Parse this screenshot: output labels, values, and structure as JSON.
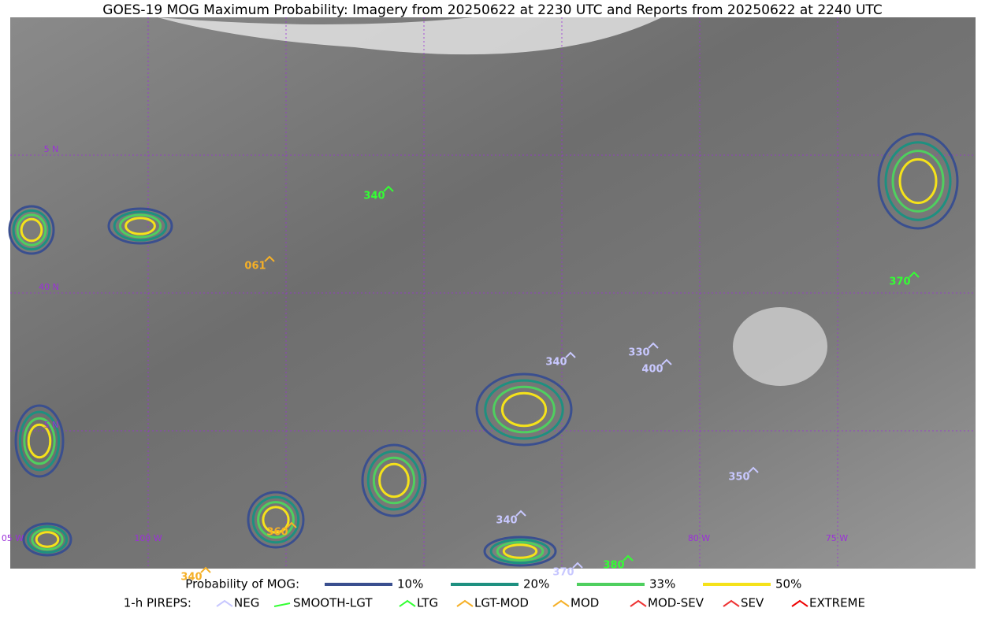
{
  "title": "GOES-19 MOG Maximum Probability: Imagery from 20250622 at 2230 UTC and Reports from 20250622 at 2240 UTC",
  "map": {
    "lat_labels": [
      "5 N",
      "40 N",
      "5 N"
    ],
    "lon_labels": [
      "05 W",
      "100 W",
      "80 W",
      "75 W"
    ],
    "reports": [
      "340",
      "061",
      "370",
      "340",
      "330",
      "400",
      "350",
      "340",
      "370",
      "380",
      "360",
      "340"
    ]
  },
  "legend": {
    "probability": {
      "title": "Probability of MOG:",
      "items": [
        "10%",
        "20%",
        "33%",
        "50%"
      ]
    },
    "pireps": {
      "title": "1-h PIREPS:",
      "items": [
        "NEG",
        "SMOOTH-LGT",
        "LTG",
        "LGT-MOD",
        "MOD",
        "MOD-SEV",
        "SEV",
        "EXTREME"
      ]
    }
  }
}
